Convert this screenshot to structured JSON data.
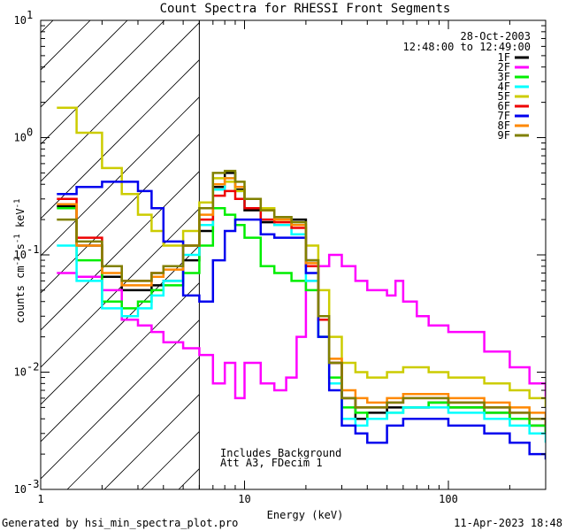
{
  "chart_data": {
    "type": "line",
    "title": "Count Spectra for RHESSI Front Segments",
    "xlabel": "Energy (keV)",
    "ylabel": "counts cm^-2 s^-1 keV^-1",
    "xscale": "log",
    "yscale": "log",
    "xlim": [
      1.0,
      300.0
    ],
    "ylim": [
      0.001,
      10.0
    ],
    "x_ticks": [
      {
        "value": 1,
        "label": "1"
      },
      {
        "value": 10,
        "label": "10"
      },
      {
        "value": 100,
        "label": "100"
      }
    ],
    "y_ticks": [
      {
        "value": 0.001,
        "base": "10",
        "exp": "-3"
      },
      {
        "value": 0.01,
        "base": "10",
        "exp": "-2"
      },
      {
        "value": 0.1,
        "base": "10",
        "exp": "-1"
      },
      {
        "value": 1,
        "base": "10",
        "exp": "0"
      },
      {
        "value": 10,
        "base": "10",
        "exp": "1"
      }
    ],
    "date": "28-Oct-2003",
    "time_range": "12:48:00 to 12:49:00",
    "annotations": [
      "Includes Background",
      "Att A3, FDecim 1"
    ],
    "shaded_region": [
      1.0,
      6.0
    ],
    "series": [
      {
        "name": "1F",
        "color": "#000000",
        "x": [
          1.2,
          1.5,
          2.0,
          2.5,
          3.0,
          3.5,
          4.0,
          5.0,
          6.0,
          7.0,
          8.0,
          9.0,
          10.0,
          12.0,
          14.0,
          17.0,
          20.0,
          23.0,
          26.0,
          30.0,
          35.0,
          40.0,
          50.0,
          60.0,
          80.0,
          100.0,
          150.0,
          200.0,
          250.0,
          300.0
        ],
        "y": [
          0.26,
          0.12,
          0.065,
          0.05,
          0.05,
          0.055,
          0.06,
          0.09,
          0.16,
          0.38,
          0.5,
          0.36,
          0.24,
          0.19,
          0.2,
          0.2,
          0.09,
          0.03,
          0.012,
          0.006,
          0.004,
          0.0045,
          0.005,
          0.005,
          0.0055,
          0.005,
          0.0045,
          0.004,
          0.0035,
          0.003
        ]
      },
      {
        "name": "2F",
        "color": "#ff00ff",
        "x": [
          1.2,
          1.5,
          2.0,
          2.5,
          3.0,
          3.5,
          4.0,
          5.0,
          6.0,
          7.0,
          8.0,
          9.0,
          10.0,
          12.0,
          14.0,
          16.0,
          18.0,
          20.0,
          23.0,
          26.0,
          30.0,
          35.0,
          40.0,
          50.0,
          55.0,
          60.0,
          70.0,
          80.0,
          100.0,
          150.0,
          200.0,
          250.0,
          300.0
        ],
        "y": [
          0.07,
          0.065,
          0.05,
          0.028,
          0.025,
          0.022,
          0.018,
          0.016,
          0.014,
          0.008,
          0.012,
          0.006,
          0.012,
          0.008,
          0.007,
          0.009,
          0.02,
          0.06,
          0.08,
          0.1,
          0.08,
          0.06,
          0.05,
          0.045,
          0.06,
          0.04,
          0.03,
          0.025,
          0.022,
          0.015,
          0.011,
          0.008,
          0.006
        ]
      },
      {
        "name": "3F",
        "color": "#00ee00",
        "x": [
          1.2,
          1.5,
          2.0,
          2.5,
          3.0,
          3.5,
          4.0,
          5.0,
          6.0,
          7.0,
          8.0,
          9.0,
          10.0,
          12.0,
          14.0,
          17.0,
          20.0,
          23.0,
          26.0,
          30.0,
          35.0,
          40.0,
          50.0,
          60.0,
          80.0,
          100.0,
          150.0,
          200.0,
          250.0,
          300.0
        ],
        "y": [
          0.25,
          0.09,
          0.04,
          0.035,
          0.04,
          0.05,
          0.055,
          0.07,
          0.12,
          0.25,
          0.22,
          0.18,
          0.14,
          0.08,
          0.07,
          0.06,
          0.05,
          0.02,
          0.009,
          0.005,
          0.0045,
          0.004,
          0.0045,
          0.005,
          0.0055,
          0.005,
          0.0045,
          0.004,
          0.0035,
          0.003
        ]
      },
      {
        "name": "4F",
        "color": "#00ffff",
        "x": [
          1.2,
          1.5,
          2.0,
          2.5,
          3.0,
          3.5,
          4.0,
          5.0,
          6.0,
          7.0,
          8.0,
          9.0,
          10.0,
          12.0,
          14.0,
          17.0,
          20.0,
          23.0,
          26.0,
          30.0,
          35.0,
          40.0,
          50.0,
          60.0,
          80.0,
          100.0,
          150.0,
          200.0,
          250.0,
          300.0
        ],
        "y": [
          0.12,
          0.06,
          0.035,
          0.03,
          0.035,
          0.045,
          0.06,
          0.1,
          0.18,
          0.36,
          0.45,
          0.35,
          0.25,
          0.2,
          0.18,
          0.15,
          0.06,
          0.02,
          0.008,
          0.004,
          0.0035,
          0.004,
          0.0045,
          0.005,
          0.005,
          0.0045,
          0.004,
          0.0035,
          0.003,
          0.0025
        ]
      },
      {
        "name": "5F",
        "color": "#cccc00",
        "x": [
          1.2,
          1.5,
          2.0,
          2.5,
          3.0,
          3.5,
          4.0,
          5.0,
          6.0,
          7.0,
          8.0,
          9.0,
          10.0,
          12.0,
          14.0,
          17.0,
          20.0,
          23.0,
          26.0,
          30.0,
          35.0,
          40.0,
          50.0,
          60.0,
          80.0,
          100.0,
          150.0,
          200.0,
          250.0,
          300.0
        ],
        "y": [
          1.8,
          1.1,
          0.55,
          0.33,
          0.22,
          0.16,
          0.12,
          0.16,
          0.28,
          0.45,
          0.42,
          0.35,
          0.3,
          0.25,
          0.2,
          0.18,
          0.12,
          0.05,
          0.02,
          0.012,
          0.01,
          0.009,
          0.01,
          0.011,
          0.01,
          0.009,
          0.008,
          0.007,
          0.006,
          0.005
        ]
      },
      {
        "name": "6F",
        "color": "#ee0000",
        "x": [
          1.2,
          1.5,
          2.0,
          2.5,
          3.0,
          3.5,
          4.0,
          5.0,
          6.0,
          7.0,
          8.0,
          9.0,
          10.0,
          12.0,
          14.0,
          17.0,
          20.0,
          23.0,
          26.0,
          30.0,
          35.0,
          40.0,
          50.0,
          60.0,
          80.0,
          100.0,
          150.0,
          200.0,
          250.0,
          300.0
        ],
        "y": [
          0.3,
          0.14,
          0.08,
          0.06,
          0.06,
          0.07,
          0.08,
          0.12,
          0.2,
          0.32,
          0.35,
          0.3,
          0.25,
          0.2,
          0.19,
          0.17,
          0.08,
          0.028,
          0.012,
          0.006,
          0.005,
          0.005,
          0.0055,
          0.006,
          0.006,
          0.0055,
          0.005,
          0.0045,
          0.004,
          0.0035
        ]
      },
      {
        "name": "7F",
        "color": "#0000ee",
        "x": [
          1.2,
          1.5,
          2.0,
          2.5,
          3.0,
          3.5,
          4.0,
          5.0,
          6.0,
          7.0,
          8.0,
          9.0,
          10.0,
          12.0,
          14.0,
          17.0,
          20.0,
          23.0,
          26.0,
          30.0,
          35.0,
          40.0,
          50.0,
          60.0,
          80.0,
          100.0,
          150.0,
          200.0,
          250.0,
          300.0
        ],
        "y": [
          0.33,
          0.38,
          0.42,
          0.42,
          0.35,
          0.25,
          0.13,
          0.045,
          0.04,
          0.09,
          0.16,
          0.2,
          0.2,
          0.15,
          0.14,
          0.14,
          0.07,
          0.02,
          0.007,
          0.0035,
          0.003,
          0.0025,
          0.0035,
          0.004,
          0.004,
          0.0035,
          0.003,
          0.0025,
          0.002,
          0.0018
        ]
      },
      {
        "name": "8F",
        "color": "#ff8800",
        "x": [
          1.2,
          1.5,
          2.0,
          2.5,
          3.0,
          3.5,
          4.0,
          5.0,
          6.0,
          7.0,
          8.0,
          9.0,
          10.0,
          12.0,
          14.0,
          17.0,
          20.0,
          23.0,
          26.0,
          30.0,
          35.0,
          40.0,
          50.0,
          60.0,
          80.0,
          100.0,
          150.0,
          200.0,
          250.0,
          300.0
        ],
        "y": [
          0.27,
          0.12,
          0.07,
          0.055,
          0.055,
          0.065,
          0.075,
          0.12,
          0.22,
          0.4,
          0.45,
          0.38,
          0.3,
          0.24,
          0.2,
          0.18,
          0.085,
          0.03,
          0.013,
          0.007,
          0.006,
          0.0055,
          0.006,
          0.0065,
          0.0065,
          0.006,
          0.0055,
          0.005,
          0.0045,
          0.004
        ]
      },
      {
        "name": "9F",
        "color": "#808000",
        "x": [
          1.2,
          1.5,
          2.0,
          2.5,
          3.0,
          3.5,
          4.0,
          5.0,
          6.0,
          7.0,
          8.0,
          9.0,
          10.0,
          12.0,
          14.0,
          17.0,
          20.0,
          23.0,
          26.0,
          30.0,
          35.0,
          40.0,
          50.0,
          60.0,
          80.0,
          100.0,
          150.0,
          200.0,
          250.0,
          300.0
        ],
        "y": [
          0.2,
          0.13,
          0.08,
          0.06,
          0.06,
          0.07,
          0.08,
          0.12,
          0.25,
          0.5,
          0.52,
          0.42,
          0.3,
          0.24,
          0.21,
          0.19,
          0.09,
          0.03,
          0.012,
          0.006,
          0.005,
          0.005,
          0.0055,
          0.006,
          0.006,
          0.0055,
          0.005,
          0.0045,
          0.004,
          0.0035
        ]
      }
    ]
  },
  "footer": {
    "left": "Generated by hsi_min_spectra_plot.pro",
    "right": "11-Apr-2023 18:48"
  }
}
